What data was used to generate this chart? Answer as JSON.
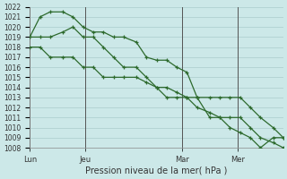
{
  "xlabel": "Pression niveau de la mer( hPa )",
  "background_color": "#cce8e8",
  "grid_color": "#aacccc",
  "line_color": "#2d6a2d",
  "ylim": [
    1008,
    1022
  ],
  "yticks": [
    1008,
    1009,
    1010,
    1011,
    1012,
    1013,
    1014,
    1015,
    1016,
    1017,
    1018,
    1019,
    1020,
    1021,
    1022
  ],
  "day_labels": [
    "Lun",
    "Jeu",
    "Mar",
    "Mer"
  ],
  "vline_x": [
    0,
    0.22,
    0.6,
    0.82
  ],
  "series1_x": [
    0.0,
    0.04,
    0.08,
    0.13,
    0.17,
    0.21,
    0.25,
    0.29,
    0.33,
    0.37,
    0.42,
    0.46,
    0.5,
    0.54,
    0.58,
    0.62,
    0.66,
    0.71,
    0.75,
    0.79,
    0.83,
    0.87,
    0.91,
    0.96,
    1.0
  ],
  "series1_y": [
    1019,
    1021,
    1021.5,
    1021.5,
    1021,
    1020,
    1019.5,
    1019.5,
    1019,
    1019,
    1018.5,
    1017,
    1016.7,
    1016.7,
    1016,
    1015.5,
    1013,
    1011,
    1011,
    1010,
    1009.5,
    1009,
    1008,
    1009,
    1009
  ],
  "series2_x": [
    0.0,
    0.04,
    0.08,
    0.13,
    0.17,
    0.21,
    0.25,
    0.29,
    0.33,
    0.37,
    0.42,
    0.46,
    0.5,
    0.54,
    0.58,
    0.62,
    0.66,
    0.71,
    0.75,
    0.79,
    0.83,
    0.87,
    0.91,
    0.96,
    1.0
  ],
  "series2_y": [
    1019,
    1019,
    1019,
    1019.5,
    1020,
    1019,
    1019,
    1018,
    1017,
    1016,
    1016,
    1015,
    1014,
    1013,
    1013,
    1013,
    1012,
    1011.5,
    1011,
    1011,
    1011,
    1010,
    1009,
    1008.5,
    1008
  ],
  "series3_x": [
    0.0,
    0.04,
    0.08,
    0.13,
    0.17,
    0.21,
    0.25,
    0.29,
    0.33,
    0.37,
    0.42,
    0.46,
    0.5,
    0.54,
    0.58,
    0.62,
    0.66,
    0.71,
    0.75,
    0.79,
    0.83,
    0.87,
    0.91,
    0.96,
    1.0
  ],
  "series3_y": [
    1018,
    1018,
    1017,
    1017,
    1017,
    1016,
    1016,
    1015,
    1015,
    1015,
    1015,
    1014.5,
    1014,
    1014,
    1013.5,
    1013,
    1013,
    1013,
    1013,
    1013,
    1013,
    1012,
    1011,
    1010,
    1009
  ]
}
